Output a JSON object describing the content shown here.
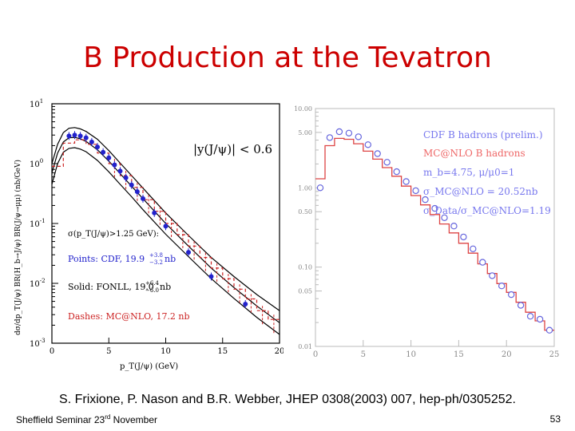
{
  "slide": {
    "title": "B Production at the Tevatron",
    "citation": "S. Frixione, P. Nason and B.R. Webber, JHEP 0308(2003) 007, hep-ph/0305252.",
    "footer_left_main": "Sheffield Seminar 23",
    "footer_left_sup": "rd",
    "footer_left_end": " November",
    "page_number": "53"
  },
  "colors": {
    "title": "#cc0000",
    "cdf": "#2222cc",
    "mcatnlo": "#cc2222",
    "right_label_blue": "#7777ee",
    "right_label_red": "#ee6666"
  },
  "chart_data": [
    {
      "type": "line",
      "xlabel": "p_T(J/ψ)  (GeV)",
      "ylabel": "dσ/dp_T(J/ψ) BR(H_b→J/ψ) BR(J/ψ→μμ)  (nb/GeV)",
      "xlim": [
        0,
        20
      ],
      "ylim_log10": [
        -3,
        1
      ],
      "log_y": true,
      "x_ticks": [
        "0",
        "5",
        "10",
        "15",
        "20"
      ],
      "y_tick_exponents": [
        1,
        0,
        -1,
        -2,
        -3
      ],
      "annotations": {
        "rapidity_cut": "|y(J/ψ)| < 0.6",
        "sigma_label": "σ(p_T(J/ψ)>1.25 GeV):",
        "points_prefix": "Points: CDF, 19.9",
        "points_up": "+3.8",
        "points_down": "−3.2",
        "points_unit": "nb",
        "solid_prefix": "Solid: FONLL, 19.0",
        "solid_up": "+6.4",
        "solid_down": "−6.0",
        "solid_unit": "nb",
        "dashes": "Dashes: MC@NLO, 17.2 nb"
      },
      "series": [
        {
          "name": "Points: CDF",
          "style": "points",
          "x": [
            1.5,
            2.0,
            2.5,
            3.0,
            3.5,
            4.0,
            4.5,
            5.0,
            5.5,
            6.0,
            6.5,
            7.0,
            7.5,
            8.0,
            9.0,
            10.0,
            12.0,
            14.0,
            17.0
          ],
          "y": [
            2.9,
            3.0,
            2.9,
            2.7,
            2.3,
            1.9,
            1.55,
            1.25,
            0.95,
            0.75,
            0.58,
            0.44,
            0.34,
            0.26,
            0.15,
            0.09,
            0.033,
            0.013,
            0.0045
          ]
        },
        {
          "name": "FONLL central",
          "style": "solid",
          "x": [
            0,
            0.5,
            1,
            1.5,
            2,
            2.5,
            3,
            4,
            5,
            6,
            7,
            8,
            10,
            12,
            14,
            16,
            18,
            20
          ],
          "y": [
            0.7,
            1.5,
            2.3,
            2.7,
            2.75,
            2.6,
            2.35,
            1.7,
            1.1,
            0.68,
            0.42,
            0.26,
            0.1,
            0.042,
            0.018,
            0.0085,
            0.0042,
            0.0022
          ]
        },
        {
          "name": "FONLL upper",
          "style": "solid",
          "x": [
            0,
            0.5,
            1,
            1.5,
            2,
            2.5,
            3,
            4,
            5,
            6,
            7,
            8,
            10,
            12,
            14,
            16,
            18,
            20
          ],
          "y": [
            1.0,
            2.1,
            3.3,
            3.9,
            4.0,
            3.8,
            3.45,
            2.55,
            1.65,
            1.02,
            0.63,
            0.39,
            0.15,
            0.063,
            0.027,
            0.013,
            0.0065,
            0.0035
          ]
        },
        {
          "name": "FONLL lower",
          "style": "solid",
          "x": [
            0,
            0.5,
            1,
            1.5,
            2,
            2.5,
            3,
            4,
            5,
            6,
            7,
            8,
            10,
            12,
            14,
            16,
            18,
            20
          ],
          "y": [
            0.45,
            1.0,
            1.55,
            1.8,
            1.85,
            1.75,
            1.58,
            1.13,
            0.73,
            0.45,
            0.28,
            0.17,
            0.066,
            0.028,
            0.012,
            0.0056,
            0.0027,
            0.0014
          ]
        },
        {
          "name": "Dashes: MC@NLO",
          "style": "dashed-histogram",
          "x": [
            0,
            1,
            2,
            3,
            4,
            5,
            6,
            7,
            8,
            9,
            10,
            11,
            12,
            13,
            14,
            15,
            16,
            17,
            18,
            19,
            20
          ],
          "y": [
            0.9,
            2.2,
            2.5,
            2.1,
            1.5,
            1.0,
            0.63,
            0.4,
            0.25,
            0.16,
            0.1,
            0.065,
            0.042,
            0.027,
            0.018,
            0.012,
            0.008,
            0.0055,
            0.0035,
            0.0025,
            0.0015
          ]
        }
      ]
    },
    {
      "type": "line",
      "xlim": [
        0,
        25
      ],
      "log_y": true,
      "ylim": [
        0.01,
        10
      ],
      "x_ticks": [
        "0",
        "5",
        "10",
        "15",
        "20",
        "25"
      ],
      "y_ticks": [
        {
          "v": 10,
          "label": "10.00"
        },
        {
          "v": 5,
          "label": "5.00"
        },
        {
          "v": 1,
          "label": "1.00"
        },
        {
          "v": 0.5,
          "label": "0.50"
        },
        {
          "v": 0.1,
          "label": "0.10"
        },
        {
          "v": 0.05,
          "label": "0.05"
        },
        {
          "v": 0.01,
          "label": "0.01"
        }
      ],
      "legend": {
        "cdf": "CDF B hadrons (prelim.)",
        "mcatnlo": "MC@NLO B hadrons",
        "mass": "m_b=4.75, μ/μ0=1",
        "sigma": "σ_MC@NLO = 20.52nb",
        "ratio": "σ_Data/σ_MC@NLO=1.19"
      },
      "series": [
        {
          "name": "CDF B hadrons (prelim.)",
          "style": "open-circles",
          "x": [
            0.5,
            1.5,
            2.5,
            3.5,
            4.5,
            5.5,
            6.5,
            7.5,
            8.5,
            9.5,
            10.5,
            11.5,
            12.5,
            13.5,
            14.5,
            15.5,
            16.5,
            17.5,
            18.5,
            19.5,
            20.5,
            21.5,
            22.5,
            23.5,
            24.5
          ],
          "y": [
            1.0,
            4.3,
            5.1,
            4.9,
            4.4,
            3.5,
            2.7,
            2.1,
            1.6,
            1.2,
            0.92,
            0.71,
            0.55,
            0.42,
            0.33,
            0.24,
            0.17,
            0.115,
            0.078,
            0.058,
            0.045,
            0.033,
            0.024,
            0.022,
            0.016
          ]
        },
        {
          "name": "MC@NLO B hadrons",
          "style": "step",
          "x": [
            0,
            1,
            2,
            3,
            4,
            5,
            6,
            7,
            8,
            9,
            10,
            11,
            12,
            13,
            14,
            15,
            16,
            17,
            18,
            19,
            20,
            21,
            22,
            23,
            24,
            25
          ],
          "y": [
            1.3,
            3.4,
            4.2,
            4.1,
            3.6,
            2.9,
            2.3,
            1.8,
            1.4,
            1.05,
            0.8,
            0.61,
            0.46,
            0.35,
            0.27,
            0.2,
            0.15,
            0.11,
            0.083,
            0.062,
            0.048,
            0.036,
            0.027,
            0.021,
            0.016,
            0.012
          ]
        }
      ]
    }
  ]
}
